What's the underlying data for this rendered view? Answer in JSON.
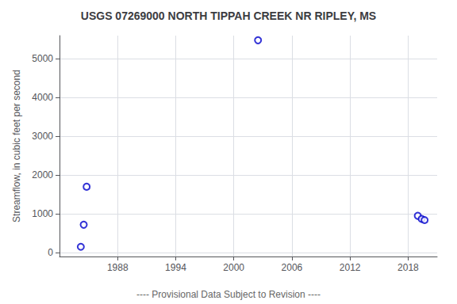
{
  "chart_data": {
    "type": "scatter",
    "title": "USGS 07269000 NORTH TIPPAH CREEK NR RIPLEY, MS",
    "ylabel": "Streamflow, in cubic feet per second",
    "x": [
      1984.2,
      1984.5,
      1984.8,
      2002.5,
      2019.0,
      2019.4,
      2019.7
    ],
    "values": [
      150,
      720,
      1700,
      5480,
      950,
      870,
      840
    ],
    "color": "#0000CC",
    "marker": "open_circle",
    "xlim": [
      1982,
      2021
    ],
    "xticks": [
      1988,
      1994,
      2000,
      2006,
      2012,
      2018
    ],
    "ylim": [
      -100,
      5600
    ],
    "yticks": [
      0,
      1000,
      2000,
      3000,
      4000,
      5000
    ],
    "grid": true,
    "annotations": [
      "---- Provisional Data Subject to Revision ----"
    ]
  }
}
